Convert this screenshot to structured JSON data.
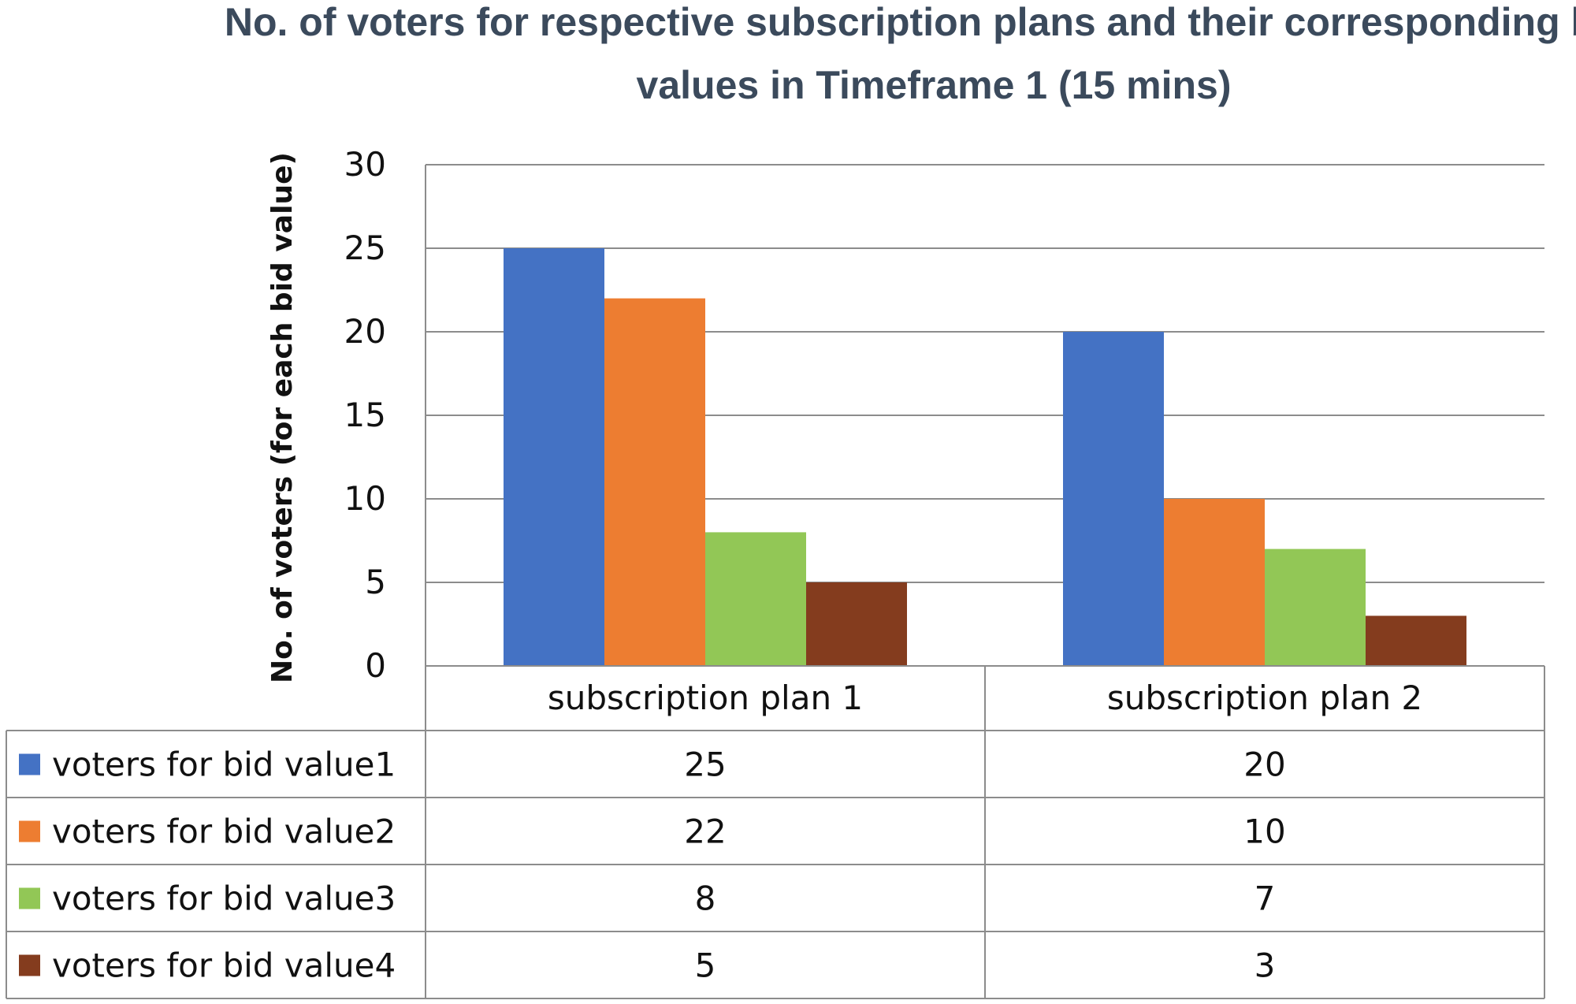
{
  "chart_data": {
    "type": "bar",
    "title_line1": "No. of voters for respective subscription plans and their corresponding bid-",
    "title_line2": "values in Timeframe 1 (15 mins)",
    "ylabel": "No. of voters (for each bid value)",
    "ylim": [
      0,
      30
    ],
    "yticks": [
      0,
      5,
      10,
      15,
      20,
      25,
      30
    ],
    "grid": true,
    "legend_placement": "data-table",
    "categories": [
      "subscription plan 1",
      "subscription plan 2"
    ],
    "series": [
      {
        "name": "voters for bid value1",
        "color": "#4472c4",
        "values": [
          25,
          20
        ]
      },
      {
        "name": "voters for bid value2",
        "color": "#ed7d31",
        "values": [
          22,
          10
        ]
      },
      {
        "name": "voters for bid value3",
        "color": "#92c756",
        "values": [
          8,
          7
        ]
      },
      {
        "name": "voters for bid value4",
        "color": "#843c1e",
        "values": [
          5,
          3
        ]
      }
    ]
  }
}
